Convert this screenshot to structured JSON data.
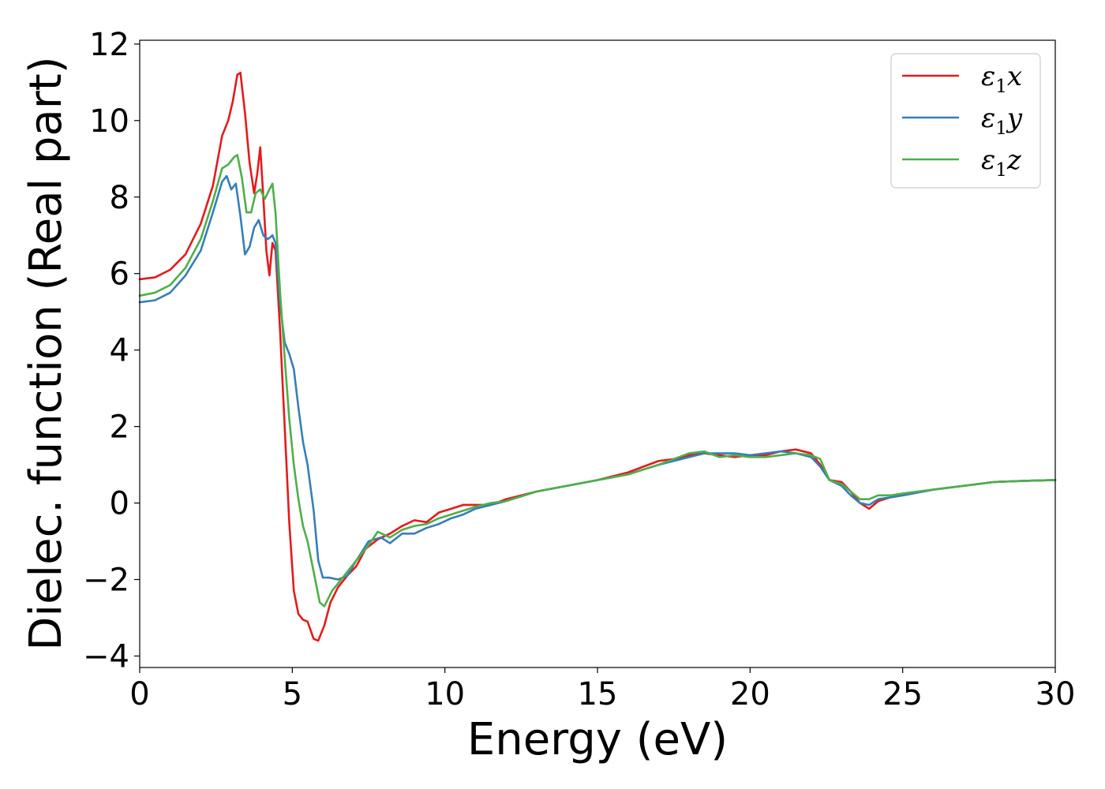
{
  "chart_data": {
    "type": "line",
    "title": "",
    "xlabel": "Energy (eV)",
    "ylabel": "Dielec. function (Real part)",
    "xlim": [
      0,
      30
    ],
    "ylim": [
      -4.3,
      12.1
    ],
    "xticks": [
      0,
      5,
      10,
      15,
      20,
      25,
      30
    ],
    "xtick_labels": [
      "0",
      "5",
      "10",
      "15",
      "20",
      "25",
      "30"
    ],
    "yticks": [
      -4,
      -2,
      0,
      2,
      4,
      6,
      8,
      10,
      12
    ],
    "ytick_labels": [
      "−4",
      "−2",
      "0",
      "2",
      "4",
      "6",
      "8",
      "10",
      "12"
    ],
    "grid": false,
    "legend_position": "top-right",
    "series": [
      {
        "name": "ε1x",
        "legend_base": "ε",
        "legend_sub": "1",
        "legend_tail": "x",
        "color": "#e41a1c",
        "points": [
          [
            0,
            5.85
          ],
          [
            0.5,
            5.9
          ],
          [
            1.0,
            6.1
          ],
          [
            1.5,
            6.5
          ],
          [
            2.0,
            7.3
          ],
          [
            2.4,
            8.3
          ],
          [
            2.7,
            9.6
          ],
          [
            2.9,
            10.0
          ],
          [
            3.05,
            10.5
          ],
          [
            3.2,
            11.2
          ],
          [
            3.3,
            11.25
          ],
          [
            3.45,
            10.2
          ],
          [
            3.6,
            8.9
          ],
          [
            3.75,
            8.1
          ],
          [
            3.85,
            8.6
          ],
          [
            3.95,
            9.3
          ],
          [
            4.05,
            8.0
          ],
          [
            4.15,
            6.6
          ],
          [
            4.25,
            5.95
          ],
          [
            4.35,
            6.8
          ],
          [
            4.45,
            6.6
          ],
          [
            4.6,
            4.5
          ],
          [
            4.75,
            2.0
          ],
          [
            4.9,
            -0.5
          ],
          [
            5.05,
            -2.3
          ],
          [
            5.2,
            -2.9
          ],
          [
            5.35,
            -3.05
          ],
          [
            5.5,
            -3.1
          ],
          [
            5.7,
            -3.55
          ],
          [
            5.85,
            -3.6
          ],
          [
            6.05,
            -3.2
          ],
          [
            6.25,
            -2.6
          ],
          [
            6.5,
            -2.2
          ],
          [
            6.8,
            -1.9
          ],
          [
            7.1,
            -1.65
          ],
          [
            7.4,
            -1.2
          ],
          [
            7.8,
            -0.95
          ],
          [
            8.2,
            -0.8
          ],
          [
            8.6,
            -0.6
          ],
          [
            9.0,
            -0.45
          ],
          [
            9.4,
            -0.5
          ],
          [
            9.8,
            -0.25
          ],
          [
            10.2,
            -0.15
          ],
          [
            10.6,
            -0.05
          ],
          [
            11.0,
            -0.05
          ],
          [
            11.5,
            -0.05
          ],
          [
            12.0,
            0.1
          ],
          [
            13,
            0.3
          ],
          [
            14,
            0.45
          ],
          [
            15,
            0.6
          ],
          [
            16,
            0.8
          ],
          [
            17,
            1.1
          ],
          [
            17.5,
            1.15
          ],
          [
            18,
            1.25
          ],
          [
            18.5,
            1.3
          ],
          [
            19,
            1.25
          ],
          [
            19.5,
            1.2
          ],
          [
            20,
            1.25
          ],
          [
            20.5,
            1.25
          ],
          [
            21,
            1.35
          ],
          [
            21.5,
            1.4
          ],
          [
            22,
            1.3
          ],
          [
            22.3,
            1.0
          ],
          [
            22.6,
            0.6
          ],
          [
            23.0,
            0.55
          ],
          [
            23.3,
            0.3
          ],
          [
            23.6,
            0.0
          ],
          [
            23.9,
            -0.15
          ],
          [
            24.2,
            0.05
          ],
          [
            24.6,
            0.15
          ],
          [
            25,
            0.2
          ],
          [
            26,
            0.35
          ],
          [
            27,
            0.45
          ],
          [
            28,
            0.55
          ],
          [
            29,
            0.58
          ],
          [
            30,
            0.6
          ]
        ]
      },
      {
        "name": "ε1y",
        "legend_base": "ε",
        "legend_sub": "1",
        "legend_tail": "y",
        "color": "#377eb8",
        "points": [
          [
            0,
            5.25
          ],
          [
            0.5,
            5.3
          ],
          [
            1.0,
            5.5
          ],
          [
            1.5,
            5.95
          ],
          [
            2.0,
            6.6
          ],
          [
            2.4,
            7.6
          ],
          [
            2.7,
            8.4
          ],
          [
            2.85,
            8.55
          ],
          [
            3.0,
            8.2
          ],
          [
            3.15,
            8.35
          ],
          [
            3.3,
            7.5
          ],
          [
            3.45,
            6.5
          ],
          [
            3.6,
            6.7
          ],
          [
            3.75,
            7.2
          ],
          [
            3.9,
            7.4
          ],
          [
            4.05,
            7.0
          ],
          [
            4.2,
            6.9
          ],
          [
            4.35,
            7.0
          ],
          [
            4.45,
            6.8
          ],
          [
            4.6,
            5.2
          ],
          [
            4.75,
            4.2
          ],
          [
            4.9,
            3.9
          ],
          [
            5.05,
            3.5
          ],
          [
            5.2,
            2.5
          ],
          [
            5.35,
            1.6
          ],
          [
            5.5,
            1.0
          ],
          [
            5.7,
            -0.2
          ],
          [
            5.85,
            -1.5
          ],
          [
            6.0,
            -1.95
          ],
          [
            6.2,
            -1.95
          ],
          [
            6.5,
            -2.0
          ],
          [
            6.8,
            -1.9
          ],
          [
            7.1,
            -1.5
          ],
          [
            7.5,
            -1.0
          ],
          [
            7.9,
            -0.9
          ],
          [
            8.2,
            -1.05
          ],
          [
            8.6,
            -0.8
          ],
          [
            9.0,
            -0.8
          ],
          [
            9.4,
            -0.65
          ],
          [
            9.8,
            -0.55
          ],
          [
            10.2,
            -0.4
          ],
          [
            10.6,
            -0.3
          ],
          [
            11.0,
            -0.15
          ],
          [
            11.5,
            -0.05
          ],
          [
            12.0,
            0.05
          ],
          [
            13,
            0.3
          ],
          [
            14,
            0.45
          ],
          [
            15,
            0.6
          ],
          [
            16,
            0.75
          ],
          [
            17,
            1.0
          ],
          [
            17.5,
            1.1
          ],
          [
            18,
            1.2
          ],
          [
            18.5,
            1.3
          ],
          [
            19,
            1.3
          ],
          [
            19.5,
            1.3
          ],
          [
            20,
            1.25
          ],
          [
            20.5,
            1.3
          ],
          [
            21,
            1.35
          ],
          [
            21.5,
            1.3
          ],
          [
            22,
            1.2
          ],
          [
            22.3,
            0.95
          ],
          [
            22.6,
            0.6
          ],
          [
            23.0,
            0.45
          ],
          [
            23.3,
            0.2
          ],
          [
            23.6,
            0.0
          ],
          [
            23.9,
            -0.05
          ],
          [
            24.2,
            0.1
          ],
          [
            24.6,
            0.15
          ],
          [
            25,
            0.2
          ],
          [
            26,
            0.35
          ],
          [
            27,
            0.45
          ],
          [
            28,
            0.55
          ],
          [
            29,
            0.58
          ],
          [
            30,
            0.6
          ]
        ]
      },
      {
        "name": "ε1z",
        "legend_base": "ε",
        "legend_sub": "1",
        "legend_tail": "z",
        "color": "#4daf4a",
        "points": [
          [
            0,
            5.42
          ],
          [
            0.5,
            5.5
          ],
          [
            1.0,
            5.7
          ],
          [
            1.5,
            6.15
          ],
          [
            2.0,
            6.9
          ],
          [
            2.4,
            7.9
          ],
          [
            2.7,
            8.75
          ],
          [
            2.9,
            8.85
          ],
          [
            3.1,
            9.05
          ],
          [
            3.2,
            9.1
          ],
          [
            3.35,
            8.5
          ],
          [
            3.5,
            7.6
          ],
          [
            3.65,
            7.6
          ],
          [
            3.8,
            8.1
          ],
          [
            3.95,
            8.2
          ],
          [
            4.1,
            7.95
          ],
          [
            4.25,
            8.2
          ],
          [
            4.35,
            8.35
          ],
          [
            4.45,
            7.6
          ],
          [
            4.6,
            5.5
          ],
          [
            4.75,
            3.8
          ],
          [
            4.9,
            2.2
          ],
          [
            5.05,
            1.0
          ],
          [
            5.2,
            0.1
          ],
          [
            5.35,
            -0.6
          ],
          [
            5.5,
            -1.0
          ],
          [
            5.7,
            -1.8
          ],
          [
            5.9,
            -2.6
          ],
          [
            6.05,
            -2.7
          ],
          [
            6.3,
            -2.3
          ],
          [
            6.6,
            -2.0
          ],
          [
            6.9,
            -1.7
          ],
          [
            7.2,
            -1.4
          ],
          [
            7.5,
            -1.1
          ],
          [
            7.8,
            -0.75
          ],
          [
            8.2,
            -0.9
          ],
          [
            8.6,
            -0.7
          ],
          [
            9.0,
            -0.6
          ],
          [
            9.4,
            -0.55
          ],
          [
            9.8,
            -0.4
          ],
          [
            10.2,
            -0.3
          ],
          [
            10.6,
            -0.2
          ],
          [
            11.0,
            -0.1
          ],
          [
            11.5,
            0.0
          ],
          [
            12.0,
            0.05
          ],
          [
            13,
            0.3
          ],
          [
            14,
            0.45
          ],
          [
            15,
            0.6
          ],
          [
            16,
            0.75
          ],
          [
            17,
            1.0
          ],
          [
            17.5,
            1.15
          ],
          [
            18,
            1.3
          ],
          [
            18.5,
            1.35
          ],
          [
            19,
            1.2
          ],
          [
            19.5,
            1.25
          ],
          [
            20,
            1.2
          ],
          [
            20.5,
            1.2
          ],
          [
            21,
            1.25
          ],
          [
            21.5,
            1.3
          ],
          [
            22,
            1.25
          ],
          [
            22.3,
            1.15
          ],
          [
            22.6,
            0.6
          ],
          [
            23.0,
            0.5
          ],
          [
            23.3,
            0.3
          ],
          [
            23.6,
            0.1
          ],
          [
            23.9,
            0.1
          ],
          [
            24.2,
            0.2
          ],
          [
            24.6,
            0.2
          ],
          [
            25,
            0.25
          ],
          [
            26,
            0.35
          ],
          [
            27,
            0.45
          ],
          [
            28,
            0.55
          ],
          [
            29,
            0.58
          ],
          [
            30,
            0.6
          ]
        ]
      }
    ]
  }
}
